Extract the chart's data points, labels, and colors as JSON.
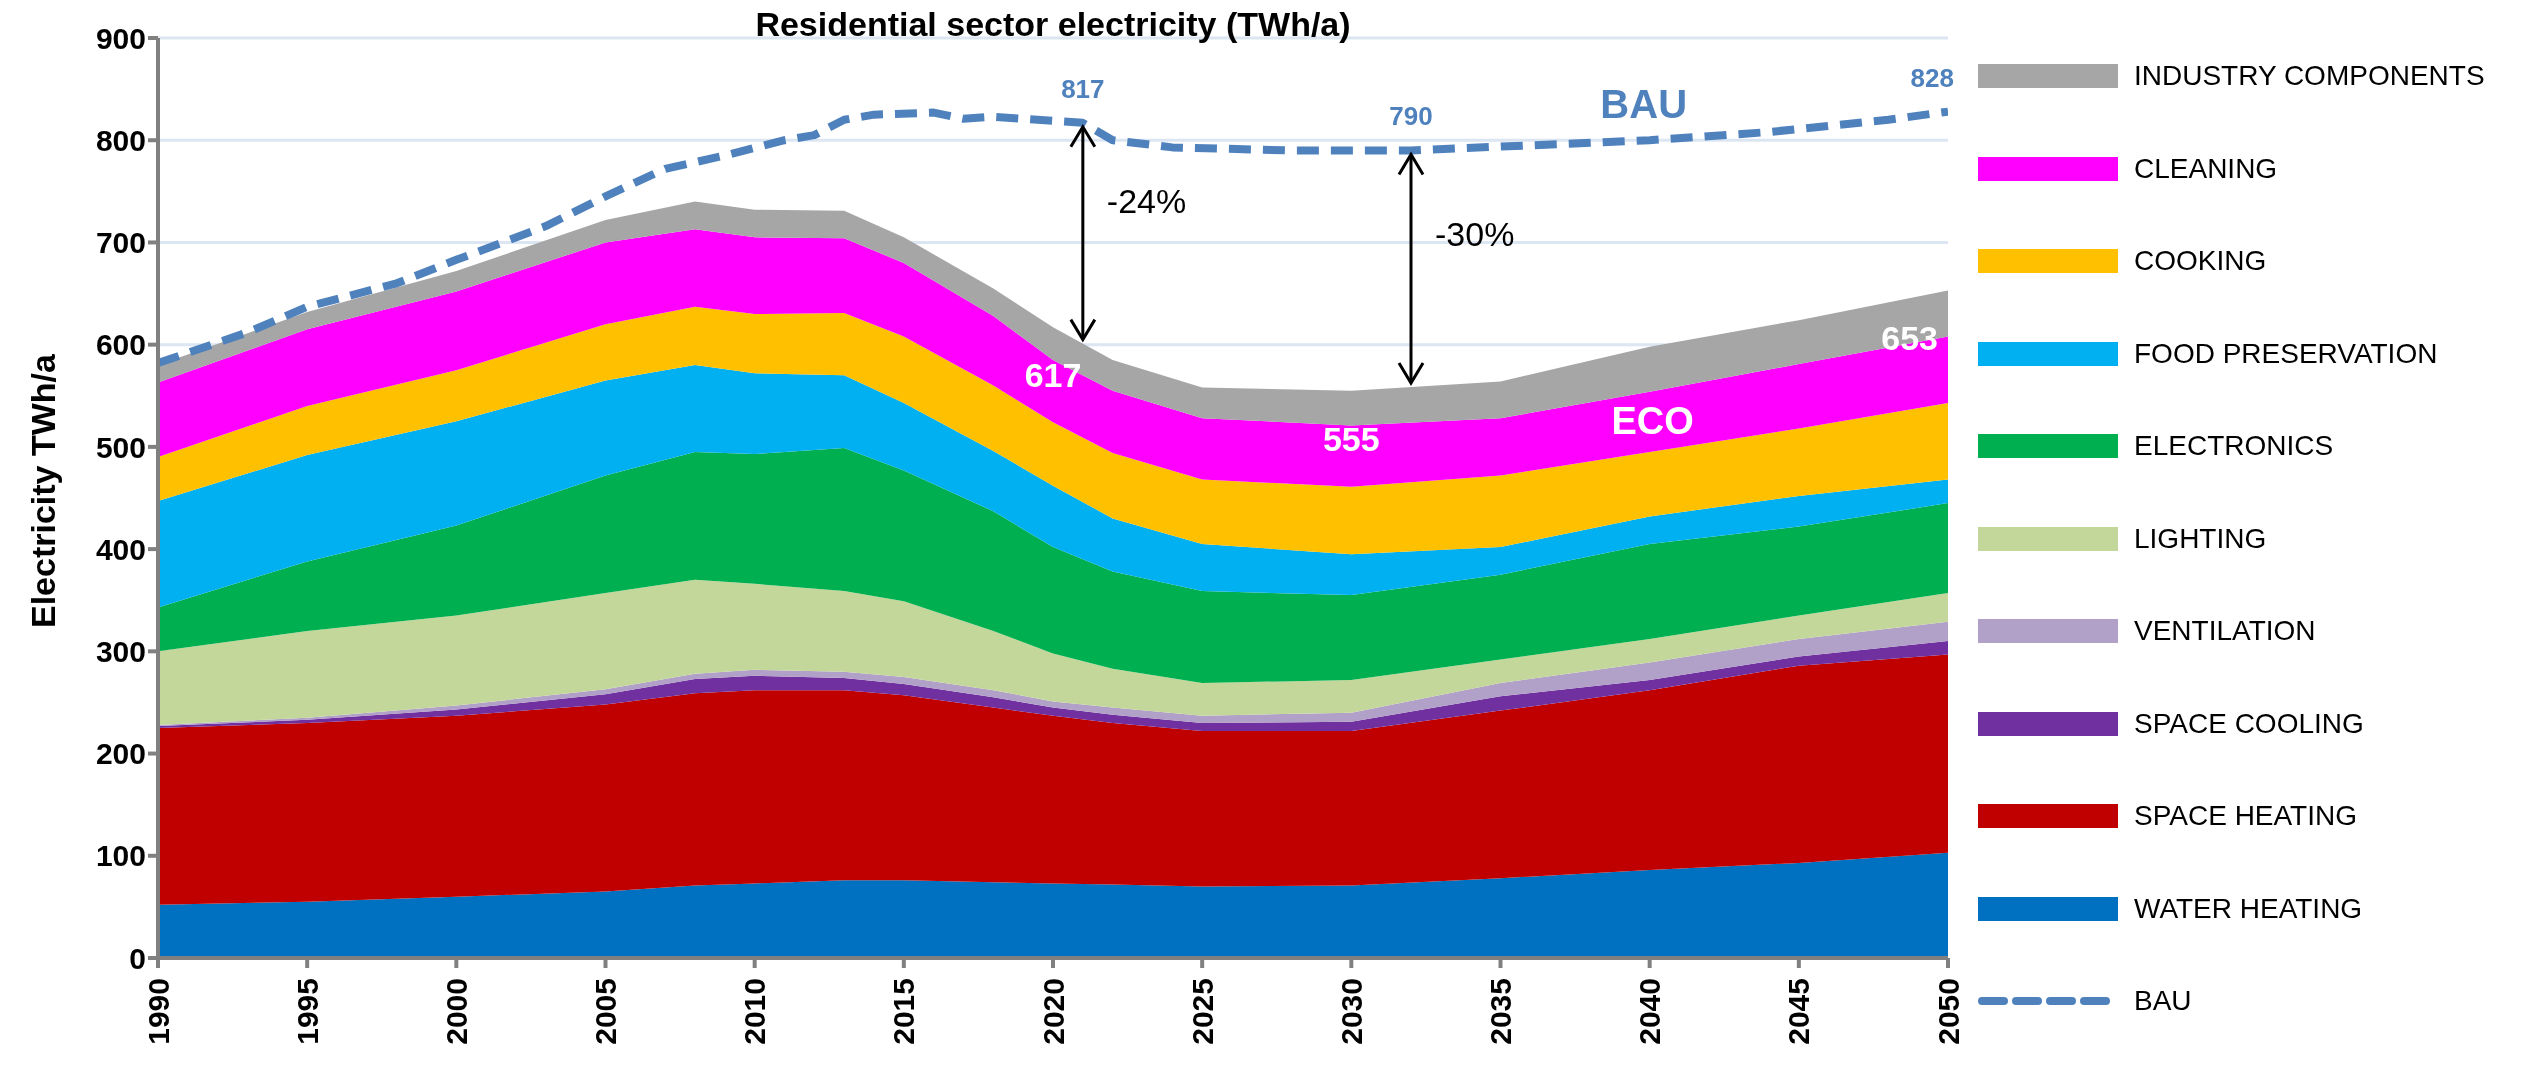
{
  "chart_data": {
    "type": "area",
    "title": "Residential sector electricity (TWh/a)",
    "ylabel": "Electricity TWh/a",
    "stacked": true,
    "legend": "right",
    "grid": "y",
    "x": [
      1990,
      1995,
      2000,
      2005,
      2008,
      2010,
      2013,
      2015,
      2018,
      2020,
      2022,
      2025,
      2030,
      2035,
      2040,
      2045,
      2050
    ],
    "xlim": [
      1990,
      2050
    ],
    "xticks": [
      1990,
      1995,
      2000,
      2005,
      2010,
      2015,
      2020,
      2025,
      2030,
      2035,
      2040,
      2045,
      2050
    ],
    "ylim": [
      0,
      900
    ],
    "yticks": [
      0,
      100,
      200,
      300,
      400,
      500,
      600,
      700,
      800,
      900
    ],
    "series": [
      {
        "name": "WATER HEATING",
        "color": "#0070c0",
        "values": [
          52,
          55,
          60,
          65,
          71,
          73,
          76,
          76,
          74,
          73,
          72,
          70,
          71,
          78,
          86,
          93,
          103
        ]
      },
      {
        "name": "SPACE HEATING",
        "color": "#c00000",
        "values": [
          173,
          175,
          177,
          183,
          188,
          189,
          186,
          181,
          171,
          164,
          158,
          152,
          151,
          164,
          176,
          193,
          194
        ]
      },
      {
        "name": "SPACE COOLING",
        "color": "#7030a0",
        "values": [
          2,
          3,
          6,
          10,
          14,
          14,
          12,
          11,
          10,
          8,
          8,
          8,
          9,
          14,
          10,
          9,
          13
        ]
      },
      {
        "name": "VENTILATION",
        "color": "#b1a0c7",
        "values": [
          1,
          2,
          4,
          5,
          5,
          6,
          6,
          7,
          7,
          6,
          7,
          7,
          9,
          13,
          17,
          17,
          19
        ]
      },
      {
        "name": "LIGHTING",
        "color": "#c4d79b",
        "values": [
          72,
          85,
          88,
          94,
          92,
          84,
          79,
          74,
          58,
          47,
          38,
          32,
          32,
          23,
          23,
          23,
          28
        ]
      },
      {
        "name": "ELECTRONICS",
        "color": "#00b050",
        "values": [
          43,
          68,
          88,
          115,
          125,
          127,
          140,
          128,
          117,
          104,
          95,
          90,
          83,
          83,
          93,
          87,
          88
        ]
      },
      {
        "name": "FOOD PRESERVATION",
        "color": "#00b0f0",
        "values": [
          104,
          104,
          102,
          93,
          85,
          79,
          71,
          66,
          59,
          60,
          52,
          46,
          40,
          27,
          27,
          30,
          23
        ]
      },
      {
        "name": "COOKING",
        "color": "#ffc000",
        "values": [
          43,
          48,
          50,
          55,
          57,
          58,
          61,
          65,
          64,
          62,
          64,
          63,
          66,
          70,
          63,
          66,
          75
        ]
      },
      {
        "name": "CLEANING",
        "color": "#ff00ff",
        "values": [
          73,
          75,
          77,
          80,
          76,
          75,
          73,
          72,
          68,
          61,
          61,
          60,
          60,
          56,
          59,
          63,
          65
        ]
      },
      {
        "name": "INDUSTRY COMPONENTS",
        "color": "#a6a6a6",
        "values": [
          17,
          17,
          20,
          22,
          27,
          27,
          27,
          25,
          27,
          32,
          30,
          30,
          34,
          36,
          44,
          43,
          45
        ]
      },
      {
        "name": "BAU",
        "type": "line",
        "line_style": "dashed",
        "color": "#4f81bd",
        "x": [
          1990,
          1993,
          1995,
          1998,
          2000,
          2003,
          2005,
          2007,
          2009,
          2011,
          2012,
          2013,
          2014,
          2016,
          2017,
          2018,
          2021,
          2022,
          2024,
          2028,
          2032,
          2036,
          2040,
          2044,
          2048,
          2050
        ],
        "values": [
          582,
          612,
          637,
          660,
          683,
          716,
          745,
          772,
          785,
          800,
          805,
          820,
          825,
          827,
          821,
          823,
          817,
          800,
          793,
          790,
          790,
          795,
          800,
          808,
          820,
          828
        ]
      }
    ],
    "annotations": [
      {
        "text": "817",
        "x": 2021,
        "y": 817
      },
      {
        "text": "790",
        "x": 2032,
        "y": 790
      },
      {
        "text": "828",
        "x": 2050,
        "y": 828
      },
      {
        "text": "617",
        "x": 2020,
        "y": 617
      },
      {
        "text": "555",
        "x": 2030,
        "y": 555
      },
      {
        "text": "653",
        "x": 2050,
        "y": 653
      },
      "ECO",
      "-24%",
      "-30%"
    ]
  }
}
